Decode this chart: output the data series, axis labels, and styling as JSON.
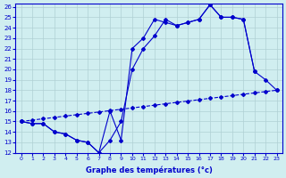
{
  "xlabel": "Graphe des températures (°c)",
  "hours": [
    0,
    1,
    2,
    3,
    4,
    5,
    6,
    7,
    8,
    9,
    10,
    11,
    12,
    13,
    14,
    15,
    16,
    17,
    18,
    19,
    20,
    21,
    22,
    23
  ],
  "line_actual": [
    15.0,
    14.8,
    14.8,
    14.0,
    13.8,
    13.2,
    13.0,
    12.0,
    16.0,
    13.2,
    22.0,
    23.0,
    24.8,
    24.5,
    24.2,
    24.5,
    24.8,
    26.2,
    25.0,
    25.0,
    24.8,
    19.8,
    null,
    null
  ],
  "line_envelope": [
    15.0,
    14.8,
    14.8,
    14.0,
    13.8,
    13.2,
    13.0,
    12.0,
    13.2,
    15.0,
    20.0,
    22.0,
    23.2,
    24.8,
    24.2,
    24.5,
    24.8,
    26.2,
    25.0,
    25.0,
    24.8,
    19.8,
    19.0,
    18.0
  ],
  "line_baseline": [
    15.0,
    15.13,
    15.26,
    15.39,
    15.52,
    15.65,
    15.78,
    15.91,
    16.04,
    16.17,
    16.3,
    16.43,
    16.56,
    16.7,
    16.83,
    16.96,
    17.09,
    17.22,
    17.35,
    17.48,
    17.61,
    17.74,
    17.87,
    18.0
  ],
  "ylim_min": 12,
  "ylim_max": 26,
  "xlim_min": 0,
  "xlim_max": 23,
  "yticks": [
    12,
    13,
    14,
    15,
    16,
    17,
    18,
    19,
    20,
    21,
    22,
    23,
    24,
    25,
    26
  ],
  "xticks": [
    0,
    1,
    2,
    3,
    4,
    5,
    6,
    7,
    8,
    9,
    10,
    11,
    12,
    13,
    14,
    15,
    16,
    17,
    18,
    19,
    20,
    21,
    22,
    23
  ],
  "line_color": "#0000cc",
  "bg_color": "#d0eef0",
  "grid_color": "#b0d0d4",
  "marker": "D",
  "marker_size": 2.0,
  "linewidth": 0.8
}
